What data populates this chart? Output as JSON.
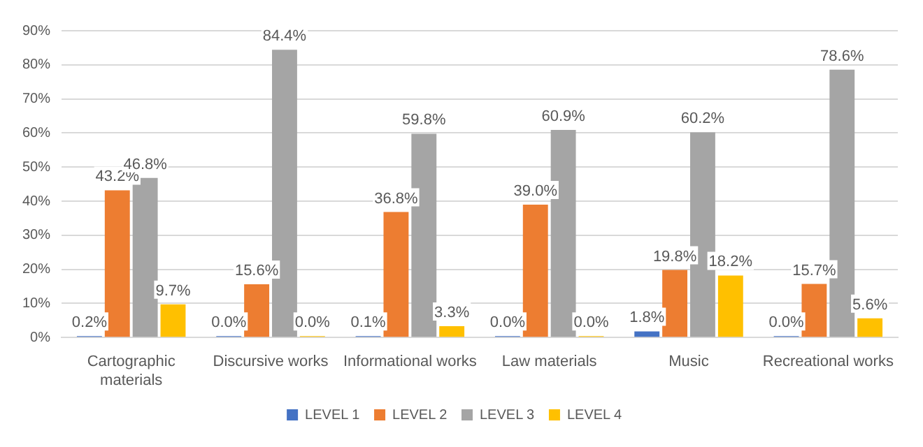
{
  "chart_data": {
    "type": "bar",
    "categories": [
      "Cartographic materials",
      "Discursive works",
      "Informational works",
      "Law materials",
      "Music",
      "Recreational works"
    ],
    "series": [
      {
        "name": "LEVEL 1",
        "color": "#4472c4",
        "values": [
          0.2,
          0.0,
          0.1,
          0.0,
          1.8,
          0.0
        ],
        "value_labels": [
          "0.2%",
          "0.0%",
          "0.1%",
          "0.0%",
          "1.8%",
          "0.0%"
        ]
      },
      {
        "name": "LEVEL 2",
        "color": "#ed7d31",
        "values": [
          43.2,
          15.6,
          36.8,
          39.0,
          19.8,
          15.7
        ],
        "value_labels": [
          "43.2%",
          "15.6%",
          "36.8%",
          "39.0%",
          "19.8%",
          "15.7%"
        ]
      },
      {
        "name": "LEVEL 3",
        "color": "#a5a5a5",
        "values": [
          46.8,
          84.4,
          59.8,
          60.9,
          60.2,
          78.6
        ],
        "value_labels": [
          "46.8%",
          "84.4%",
          "59.8%",
          "60.9%",
          "60.2%",
          "78.6%"
        ]
      },
      {
        "name": "LEVEL 4",
        "color": "#ffc000",
        "values": [
          9.7,
          0.0,
          3.3,
          0.0,
          18.2,
          5.6
        ],
        "value_labels": [
          "9.7%",
          "0.0%",
          "3.3%",
          "0.0%",
          "18.2%",
          "5.6%"
        ]
      }
    ],
    "ylim": [
      0,
      90
    ],
    "yticks": [
      {
        "value": 0,
        "label": "0%"
      },
      {
        "value": 10,
        "label": "10%"
      },
      {
        "value": 20,
        "label": "20%"
      },
      {
        "value": 30,
        "label": "30%"
      },
      {
        "value": 40,
        "label": "40%"
      },
      {
        "value": 50,
        "label": "50%"
      },
      {
        "value": 60,
        "label": "60%"
      },
      {
        "value": 70,
        "label": "70%"
      },
      {
        "value": 80,
        "label": "80%"
      },
      {
        "value": 90,
        "label": "90%"
      }
    ],
    "grid": "y",
    "legend": "bottom"
  }
}
